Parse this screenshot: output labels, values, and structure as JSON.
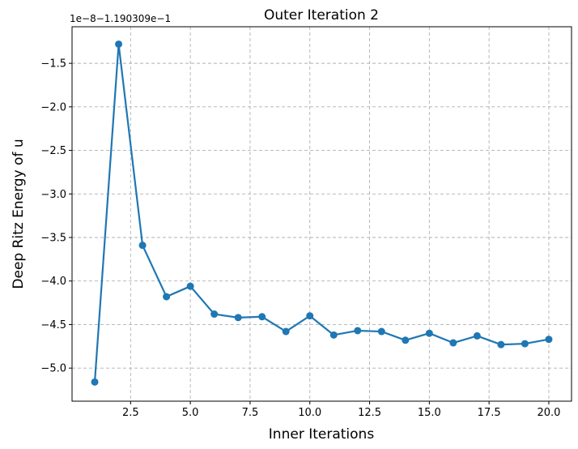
{
  "chart_data": {
    "type": "line",
    "title": "Outer Iteration 2",
    "xlabel": "Inner Iterations",
    "ylabel": "Deep Ritz Energy of u",
    "y_offset_text": "1e−8−1.190309e−1",
    "xlim": [
      0.05,
      20.95
    ],
    "ylim": [
      -5.38,
      -1.08
    ],
    "xticks": [
      2.5,
      5.0,
      7.5,
      10.0,
      12.5,
      15.0,
      17.5,
      20.0
    ],
    "xtick_labels": [
      "2.5",
      "5.0",
      "7.5",
      "10.0",
      "12.5",
      "15.0",
      "17.5",
      "20.0"
    ],
    "yticks": [
      -1.5,
      -2.0,
      -2.5,
      -3.0,
      -3.5,
      -4.0,
      -4.5,
      -5.0
    ],
    "ytick_labels": [
      "−1.5",
      "−2.0",
      "−2.5",
      "−3.0",
      "−3.5",
      "−4.0",
      "−4.5",
      "−5.0"
    ],
    "grid": true,
    "series": [
      {
        "color": "#1f77b4",
        "marker": "circle",
        "x": [
          1,
          2,
          3,
          4,
          5,
          6,
          7,
          8,
          9,
          10,
          11,
          12,
          13,
          14,
          15,
          16,
          17,
          18,
          19,
          20
        ],
        "y": [
          -5.16,
          -1.28,
          -3.59,
          -4.18,
          -4.06,
          -4.38,
          -4.42,
          -4.41,
          -4.58,
          -4.4,
          -4.62,
          -4.57,
          -4.58,
          -4.68,
          -4.6,
          -4.71,
          -4.63,
          -4.73,
          -4.72,
          -4.67
        ]
      }
    ]
  }
}
